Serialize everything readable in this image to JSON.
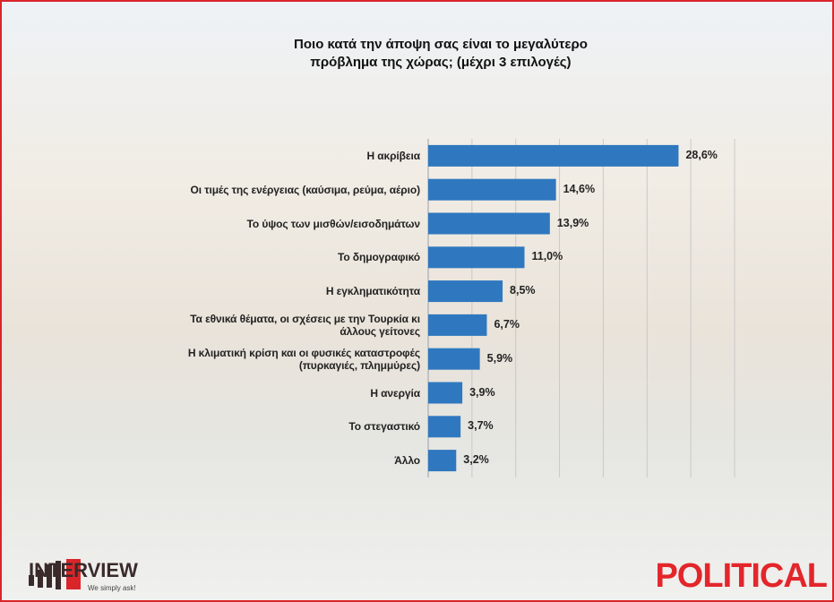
{
  "chart_data": {
    "type": "bar",
    "orientation": "horizontal",
    "title": "Ποιο κατά την άποψη σας είναι το μεγαλύτερο\nπρόβλημα της χώρας; (μέχρι 3 επιλογές)",
    "categories": [
      "Η ακρίβεια",
      "Οι τιμές της ενέργειας (καύσιμα, ρεύμα, αέριο)",
      "Το ύψος των μισθών/εισοδημάτων",
      "Το δημογραφικό",
      "Η εγκληματικότητα",
      "Τα εθνικά θέματα, οι σχέσεις με την Τουρκία κι\nάλλους γείτονες",
      "Η κλιματική κρίση και οι φυσικές καταστροφές\n(πυρκαγιές, πλημμύρες)",
      "Η ανεργία",
      "Το στεγαστικό",
      "Άλλο"
    ],
    "values": [
      28.6,
      14.6,
      13.9,
      11.0,
      8.5,
      6.7,
      5.9,
      3.9,
      3.7,
      3.2
    ],
    "value_labels": [
      "28,6%",
      "14,6%",
      "13,9%",
      "11,0%",
      "8,5%",
      "6,7%",
      "5,9%",
      "3,9%",
      "3,7%",
      "3,2%"
    ],
    "color": "#2f78bf",
    "xlim": [
      0,
      35
    ],
    "xticks": [
      0,
      5,
      10,
      15,
      20,
      25,
      30,
      35
    ],
    "grid": true
  },
  "branding": {
    "left": "INTERVIEW",
    "tagline": "We simply ask!",
    "right": "POLITICAL"
  }
}
